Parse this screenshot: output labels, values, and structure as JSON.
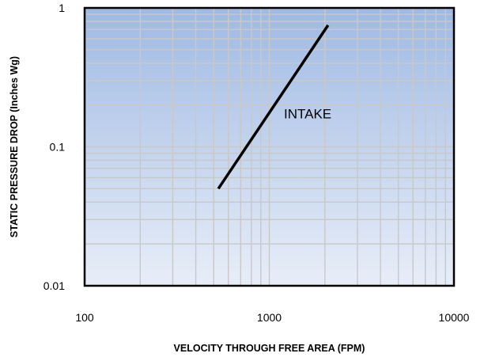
{
  "chart_data": {
    "type": "line",
    "title": "",
    "xlabel": "VELOCITY THROUGH FREE AREA (FPM)",
    "ylabel": "STATIC PRESSURE DROP (Inches Wg)",
    "x_scale": "log",
    "y_scale": "log",
    "xlim": [
      100,
      10000
    ],
    "ylim": [
      0.01,
      1
    ],
    "x_ticks": [
      "100",
      "1000",
      "10000"
    ],
    "x_tick_values": [
      100,
      1000,
      10000
    ],
    "y_ticks": [
      "0.01",
      "0.1",
      "1"
    ],
    "y_tick_values": [
      0.01,
      0.1,
      1
    ],
    "grid": true,
    "legend": "none",
    "plot_background": {
      "top": "#9fb9e3",
      "bottom": "#e8eef8"
    },
    "series": [
      {
        "name": "INTAKE",
        "color": "#000000",
        "x": [
          530,
          2080
        ],
        "y": [
          0.05,
          0.75
        ]
      }
    ],
    "annotations": [
      {
        "text": "INTAKE",
        "x": 1200,
        "y": 0.16
      }
    ]
  }
}
